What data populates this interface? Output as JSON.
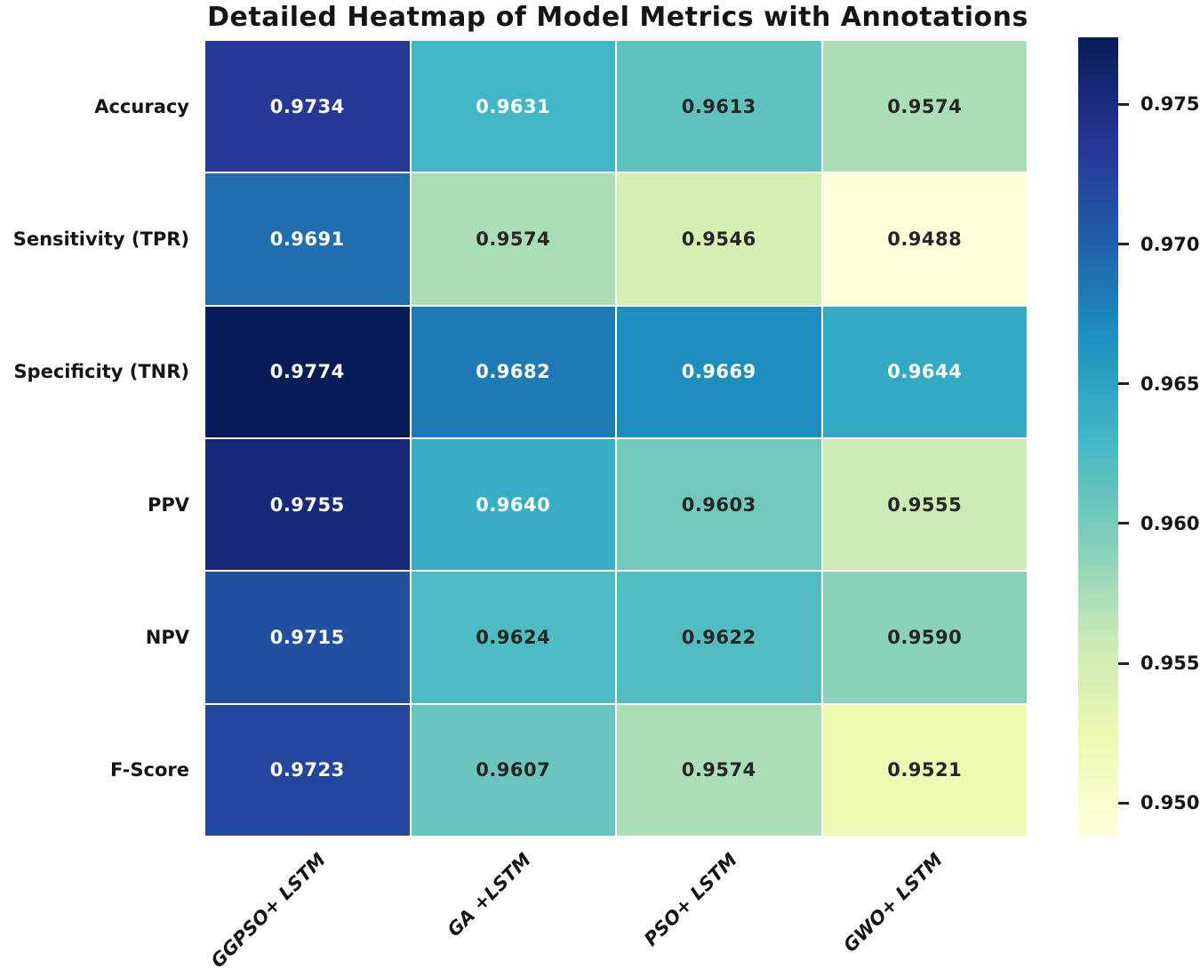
{
  "title": "Detailed Heatmap of Model Metrics with Annotations",
  "chart_data": {
    "type": "heatmap",
    "title": "Detailed Heatmap of Model Metrics with Annotations",
    "rows": [
      "Accuracy",
      "Sensitivity (TPR)",
      "Specificity (TNR)",
      "PPV",
      "NPV",
      "F-Score"
    ],
    "columns": [
      "GGPSO+ LSTM",
      "GA +LSTM",
      "PSO+ LSTM",
      "GWO+ LSTM"
    ],
    "values": [
      [
        0.9734,
        0.9631,
        0.9613,
        0.9574
      ],
      [
        0.9691,
        0.9574,
        0.9546,
        0.9488
      ],
      [
        0.9774,
        0.9682,
        0.9669,
        0.9644
      ],
      [
        0.9755,
        0.964,
        0.9603,
        0.9555
      ],
      [
        0.9715,
        0.9624,
        0.9622,
        0.959
      ],
      [
        0.9723,
        0.9607,
        0.9574,
        0.9521
      ]
    ],
    "value_decimals": 4,
    "vmin": 0.9488,
    "vmax": 0.9774,
    "colormap": "YlGnBu",
    "colormap_stops": [
      "#ffffd9",
      "#edf8b1",
      "#c7e9b4",
      "#7fcdbb",
      "#41b6c4",
      "#1d91c0",
      "#225ea8",
      "#253494",
      "#081d58"
    ],
    "colorbar_ticks": [
      "0.975",
      "0.970",
      "0.965",
      "0.960",
      "0.955",
      "0.950"
    ],
    "annotation_colors": {
      "light_text": "#ffffff",
      "dark_text": "#262626"
    },
    "grid_line_color": "#ffffff",
    "legend_position": "right-colorbar",
    "grid": "white cell separators"
  }
}
